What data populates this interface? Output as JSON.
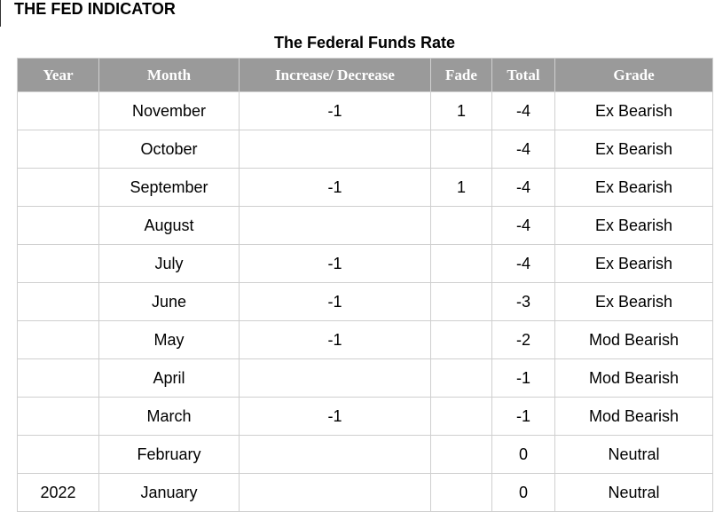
{
  "page": {
    "heading": "THE FED INDICATOR",
    "table_title": "The Federal Funds Rate"
  },
  "table": {
    "headers": [
      "Year",
      "Month",
      "Increase/ Decrease",
      "Fade",
      "Total",
      "Grade"
    ],
    "rows": [
      {
        "year": "",
        "month": "November",
        "change": "-1",
        "fade": "1",
        "total": "-4",
        "grade": "Ex Bearish"
      },
      {
        "year": "",
        "month": "October",
        "change": "",
        "fade": "",
        "total": "-4",
        "grade": "Ex Bearish"
      },
      {
        "year": "",
        "month": "September",
        "change": "-1",
        "fade": "1",
        "total": "-4",
        "grade": "Ex Bearish"
      },
      {
        "year": "",
        "month": "August",
        "change": "",
        "fade": "",
        "total": "-4",
        "grade": "Ex Bearish"
      },
      {
        "year": "",
        "month": "July",
        "change": "-1",
        "fade": "",
        "total": "-4",
        "grade": "Ex Bearish"
      },
      {
        "year": "",
        "month": "June",
        "change": "-1",
        "fade": "",
        "total": "-3",
        "grade": "Ex Bearish"
      },
      {
        "year": "",
        "month": "May",
        "change": "-1",
        "fade": "",
        "total": "-2",
        "grade": "Mod Bearish"
      },
      {
        "year": "",
        "month": "April",
        "change": "",
        "fade": "",
        "total": "-1",
        "grade": "Mod Bearish"
      },
      {
        "year": "",
        "month": "March",
        "change": "-1",
        "fade": "",
        "total": "-1",
        "grade": "Mod Bearish"
      },
      {
        "year": "",
        "month": "February",
        "change": "",
        "fade": "",
        "total": "0",
        "grade": "Neutral"
      },
      {
        "year": "2022",
        "month": "January",
        "change": "",
        "fade": "",
        "total": "0",
        "grade": "Neutral"
      }
    ]
  },
  "colors": {
    "header_background": "#9a9a9a",
    "header_text": "#ffffff",
    "grid_line": "#cfcfcf"
  }
}
